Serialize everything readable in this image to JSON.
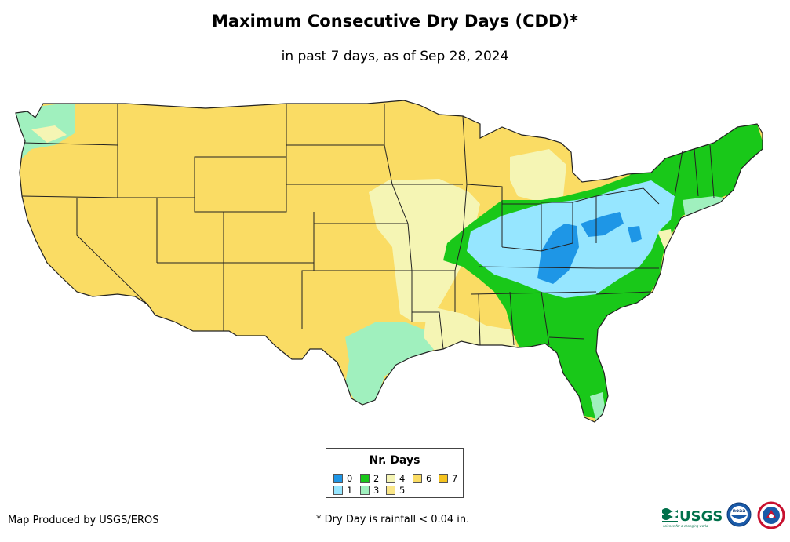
{
  "title": "Maximum Consecutive Dry Days (CDD)*",
  "subtitle": "in past 7 days, as of Sep 28, 2024",
  "legend": {
    "title": "Nr. Days",
    "items": [
      {
        "label": "0",
        "color": "#1e96e6"
      },
      {
        "label": "1",
        "color": "#96e6ff"
      },
      {
        "label": "2",
        "color": "#19c819"
      },
      {
        "label": "3",
        "color": "#a0f0be"
      },
      {
        "label": "4",
        "color": "#f5f5b4"
      },
      {
        "label": "5",
        "color": "#fae687"
      },
      {
        "label": "6",
        "color": "#fadc64"
      },
      {
        "label": "7",
        "color": "#f5c31e"
      }
    ]
  },
  "footer": {
    "credit": "Map Produced by USGS/EROS",
    "note": "* Dry Day is rainfall < 0.04 in."
  },
  "logos": {
    "usgs": "USGS",
    "usgs_tagline": "science for a changing world",
    "noaa": "noaa",
    "nws_icon": "nws-icon"
  }
}
